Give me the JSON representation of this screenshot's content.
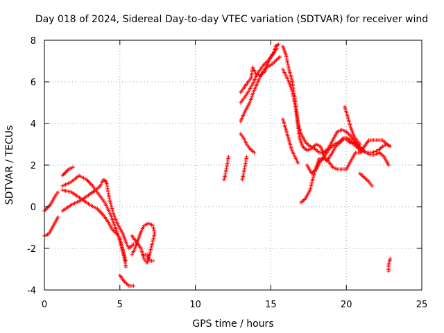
{
  "chart_data": {
    "type": "scatter",
    "title": "Day 018 of 2024, Sidereal Day-to-day VTEC variation (SDTVAR) for receiver wind",
    "xlabel": "GPS time / hours",
    "ylabel": "SDTVAR / TECUs",
    "xlim": [
      0,
      25
    ],
    "ylim": [
      -4,
      8
    ],
    "xticks": [
      0,
      5,
      10,
      15,
      20,
      25
    ],
    "yticks": [
      -4,
      -2,
      0,
      2,
      4,
      6,
      8
    ],
    "grid": true,
    "marker": "+",
    "series": [
      {
        "name": "SDTVAR",
        "color": "#ff0000",
        "segments": [
          [
            [
              0.0,
              -1.4
            ],
            [
              0.3,
              -1.3
            ],
            [
              0.6,
              -0.9
            ],
            [
              0.9,
              -0.5
            ]
          ],
          [
            [
              0.0,
              -0.2
            ],
            [
              0.4,
              0.1
            ],
            [
              0.7,
              0.5
            ],
            [
              0.9,
              0.7
            ]
          ],
          [
            [
              1.2,
              1.5
            ],
            [
              1.6,
              1.8
            ],
            [
              1.9,
              1.9
            ]
          ],
          [
            [
              1.2,
              1.0
            ],
            [
              1.8,
              1.2
            ],
            [
              2.3,
              1.5
            ],
            [
              2.8,
              1.3
            ],
            [
              3.2,
              1.0
            ],
            [
              3.6,
              0.6
            ],
            [
              4.0,
              0.2
            ],
            [
              4.4,
              -0.4
            ],
            [
              4.8,
              -1.2
            ],
            [
              5.1,
              -1.9
            ],
            [
              5.4,
              -2.6
            ]
          ],
          [
            [
              1.2,
              -0.2
            ],
            [
              1.8,
              0.1
            ],
            [
              2.4,
              0.3
            ],
            [
              3.0,
              0.6
            ],
            [
              3.4,
              0.8
            ],
            [
              3.7,
              1.0
            ],
            [
              3.9,
              1.3
            ],
            [
              4.1,
              1.2
            ],
            [
              4.3,
              0.4
            ],
            [
              4.6,
              -0.4
            ],
            [
              4.9,
              -0.9
            ],
            [
              5.2,
              -1.3
            ],
            [
              5.4,
              -1.7
            ],
            [
              5.6,
              -2.0
            ],
            [
              5.9,
              -1.8
            ]
          ],
          [
            [
              1.2,
              0.8
            ],
            [
              1.8,
              0.7
            ],
            [
              2.4,
              0.4
            ],
            [
              3.0,
              0.1
            ],
            [
              3.5,
              -0.1
            ],
            [
              3.9,
              -0.4
            ],
            [
              4.2,
              -0.7
            ],
            [
              4.5,
              -1.1
            ],
            [
              4.8,
              -1.3
            ],
            [
              5.0,
              -1.5
            ],
            [
              5.2,
              -2.1
            ],
            [
              5.4,
              -2.9
            ]
          ],
          [
            [
              5.0,
              -3.3
            ],
            [
              5.3,
              -3.6
            ],
            [
              5.6,
              -3.8
            ],
            [
              5.9,
              -3.8
            ]
          ],
          [
            [
              5.8,
              -1.4
            ],
            [
              6.1,
              -1.7
            ],
            [
              6.4,
              -2.0
            ],
            [
              6.6,
              -2.5
            ],
            [
              6.8,
              -2.7
            ],
            [
              7.0,
              -2.2
            ],
            [
              7.2,
              -1.6
            ],
            [
              7.3,
              -1.3
            ],
            [
              7.2,
              -0.9
            ],
            [
              6.9,
              -0.8
            ],
            [
              6.6,
              -0.9
            ],
            [
              6.4,
              -1.2
            ],
            [
              6.2,
              -1.6
            ],
            [
              6.0,
              -2.0
            ],
            [
              5.8,
              -2.3
            ]
          ],
          [
            [
              6.5,
              -2.3
            ],
            [
              6.8,
              -2.3
            ],
            [
              7.0,
              -2.6
            ],
            [
              7.2,
              -2.6
            ]
          ],
          [
            [
              11.9,
              1.3
            ],
            [
              12.0,
              1.6
            ],
            [
              12.1,
              2.0
            ],
            [
              12.2,
              2.4
            ]
          ],
          [
            [
              13.1,
              1.3
            ],
            [
              13.2,
              1.6
            ],
            [
              13.3,
              2.0
            ],
            [
              13.4,
              2.4
            ]
          ],
          [
            [
              13.0,
              3.5
            ],
            [
              13.2,
              3.3
            ],
            [
              13.4,
              3.0
            ],
            [
              13.6,
              2.8
            ],
            [
              13.9,
              2.6
            ]
          ],
          [
            [
              13.0,
              4.1
            ],
            [
              13.3,
              4.6
            ],
            [
              13.6,
              5.0
            ],
            [
              13.9,
              5.6
            ],
            [
              14.2,
              6.1
            ],
            [
              14.4,
              6.4
            ],
            [
              14.7,
              6.7
            ],
            [
              15.0,
              6.8
            ],
            [
              15.3,
              7.0
            ],
            [
              15.6,
              7.2
            ]
          ],
          [
            [
              13.0,
              5.5
            ],
            [
              13.2,
              5.7
            ],
            [
              13.5,
              6.0
            ],
            [
              13.7,
              6.2
            ],
            [
              13.8,
              6.7
            ],
            [
              14.0,
              6.4
            ],
            [
              14.3,
              6.3
            ],
            [
              14.6,
              6.5
            ],
            [
              14.8,
              6.9
            ],
            [
              15.0,
              7.2
            ],
            [
              15.2,
              7.4
            ],
            [
              15.3,
              7.7
            ],
            [
              15.5,
              7.8
            ]
          ],
          [
            [
              13.0,
              5.0
            ],
            [
              13.4,
              5.4
            ],
            [
              13.8,
              5.9
            ],
            [
              14.1,
              6.4
            ],
            [
              14.5,
              6.8
            ],
            [
              14.8,
              7.0
            ],
            [
              15.1,
              7.3
            ],
            [
              15.4,
              7.6
            ]
          ],
          [
            [
              15.8,
              7.7
            ],
            [
              16.0,
              7.3
            ],
            [
              16.2,
              6.6
            ],
            [
              16.4,
              6.1
            ],
            [
              16.5,
              5.6
            ],
            [
              16.6,
              5.2
            ],
            [
              16.7,
              4.6
            ],
            [
              16.8,
              3.9
            ],
            [
              16.9,
              3.3
            ],
            [
              17.1,
              2.9
            ],
            [
              17.4,
              2.7
            ],
            [
              17.7,
              2.8
            ],
            [
              18.0,
              3.0
            ],
            [
              18.3,
              2.9
            ],
            [
              18.5,
              2.5
            ],
            [
              18.7,
              2.2
            ],
            [
              19.0,
              2.5
            ],
            [
              19.3,
              2.9
            ],
            [
              19.6,
              3.1
            ],
            [
              19.9,
              3.3
            ],
            [
              20.2,
              3.1
            ],
            [
              20.5,
              3.0
            ],
            [
              20.8,
              2.8
            ],
            [
              21.0,
              2.6
            ]
          ],
          [
            [
              15.8,
              6.6
            ],
            [
              16.0,
              6.3
            ],
            [
              16.2,
              6.0
            ],
            [
              16.4,
              5.6
            ],
            [
              16.6,
              4.9
            ],
            [
              16.8,
              4.0
            ],
            [
              17.0,
              3.5
            ],
            [
              17.3,
              3.1
            ],
            [
              17.6,
              2.9
            ],
            [
              17.9,
              2.8
            ],
            [
              18.2,
              2.6
            ],
            [
              18.5,
              2.6
            ],
            [
              18.8,
              2.8
            ],
            [
              19.1,
              3.2
            ],
            [
              19.4,
              3.6
            ],
            [
              19.7,
              3.7
            ],
            [
              20.0,
              3.6
            ],
            [
              20.3,
              3.4
            ],
            [
              20.6,
              3.1
            ],
            [
              20.9,
              2.8
            ],
            [
              21.3,
              2.6
            ],
            [
              21.7,
              2.6
            ],
            [
              22.1,
              2.7
            ],
            [
              22.4,
              2.9
            ],
            [
              22.7,
              3.0
            ]
          ],
          [
            [
              15.8,
              4.2
            ],
            [
              16.0,
              3.7
            ],
            [
              16.2,
              3.2
            ],
            [
              16.4,
              2.7
            ],
            [
              16.6,
              2.4
            ],
            [
              16.8,
              2.1
            ]
          ],
          [
            [
              17.0,
              0.2
            ],
            [
              17.3,
              0.4
            ],
            [
              17.6,
              0.8
            ],
            [
              17.8,
              1.4
            ],
            [
              18.0,
              1.9
            ],
            [
              18.2,
              2.3
            ],
            [
              18.5,
              2.3
            ],
            [
              18.8,
              2.2
            ],
            [
              19.1,
              1.9
            ],
            [
              19.4,
              1.8
            ],
            [
              19.7,
              1.8
            ],
            [
              20.0,
              1.8
            ],
            [
              20.3,
              2.2
            ],
            [
              20.6,
              2.6
            ],
            [
              20.9,
              2.6
            ],
            [
              21.2,
              2.9
            ],
            [
              21.5,
              3.2
            ],
            [
              21.8,
              3.2
            ],
            [
              22.1,
              3.2
            ],
            [
              22.4,
              3.2
            ],
            [
              22.7,
              3.0
            ],
            [
              22.9,
              2.9
            ]
          ],
          [
            [
              17.4,
              2.0
            ],
            [
              17.7,
              1.6
            ],
            [
              18.0,
              1.8
            ],
            [
              18.3,
              2.2
            ],
            [
              18.6,
              2.5
            ],
            [
              18.9,
              2.8
            ],
            [
              19.2,
              3.0
            ],
            [
              19.5,
              3.1
            ],
            [
              19.8,
              3.3
            ],
            [
              20.1,
              3.3
            ],
            [
              20.4,
              3.1
            ],
            [
              20.7,
              3.0
            ],
            [
              21.0,
              2.8
            ],
            [
              21.3,
              2.6
            ],
            [
              21.6,
              2.5
            ],
            [
              21.9,
              2.5
            ],
            [
              22.2,
              2.6
            ],
            [
              22.5,
              2.4
            ],
            [
              22.8,
              2.0
            ]
          ],
          [
            [
              19.9,
              4.8
            ],
            [
              20.1,
              4.3
            ],
            [
              20.3,
              3.8
            ],
            [
              20.5,
              3.4
            ],
            [
              20.7,
              3.2
            ],
            [
              20.9,
              3.0
            ]
          ],
          [
            [
              20.9,
              1.6
            ],
            [
              21.2,
              1.4
            ],
            [
              21.5,
              1.2
            ],
            [
              21.7,
              1.0
            ]
          ],
          [
            [
              22.8,
              -3.1
            ],
            [
              22.8,
              -2.8
            ],
            [
              22.9,
              -2.5
            ]
          ]
        ]
      }
    ]
  }
}
